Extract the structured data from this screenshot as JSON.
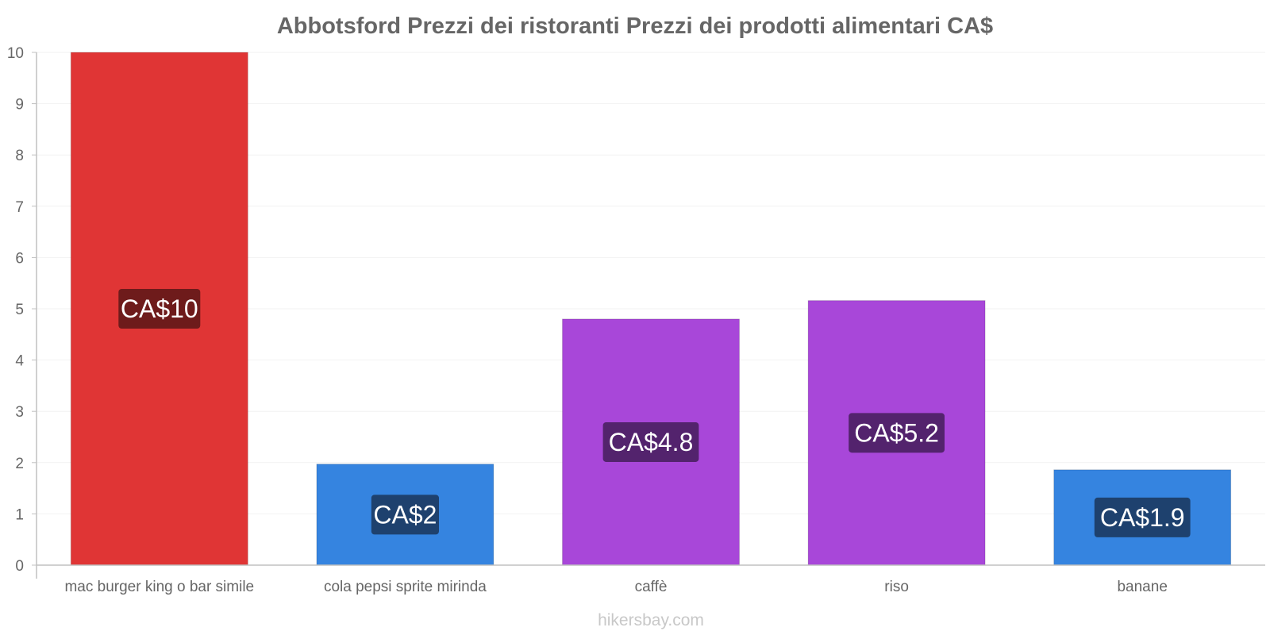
{
  "chart_data": {
    "type": "bar",
    "title": "Abbotsford Prezzi dei ristoranti Prezzi dei prodotti alimentari CA$",
    "categories": [
      "mac burger king o bar simile",
      "cola pepsi sprite mirinda",
      "caffè",
      "riso",
      "banane"
    ],
    "values": [
      10,
      1.97,
      4.8,
      5.16,
      1.86
    ],
    "data_labels": [
      "CA$10",
      "CA$2",
      "CA$4.8",
      "CA$5.2",
      "CA$1.9"
    ],
    "bar_colors": [
      "#e03535",
      "#3584e0",
      "#a847d9",
      "#a847d9",
      "#3584e0"
    ],
    "label_colors": [
      "#6e1b1b",
      "#1e416e",
      "#53236d",
      "#53236d",
      "#1e416e"
    ],
    "ylim": [
      0,
      10
    ],
    "yticks": [
      0,
      1,
      2,
      3,
      4,
      5,
      6,
      7,
      8,
      9,
      10
    ],
    "xlabel": "",
    "ylabel": "",
    "grid": true
  },
  "watermark": "hikersbay.com"
}
